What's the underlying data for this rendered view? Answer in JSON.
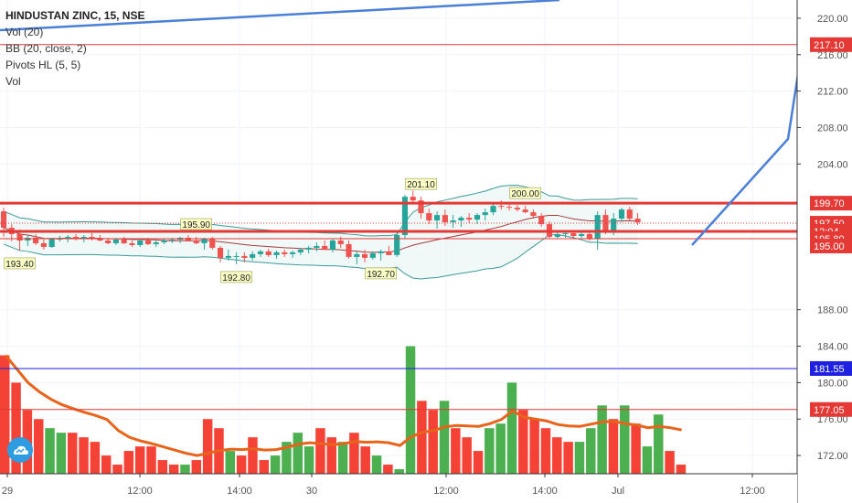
{
  "legend": {
    "title": "HINDUSTAN ZINC, 15, NSE",
    "lines": [
      "Vol (20)",
      "BB (20, close, 2)",
      "Pivots HL (5, 5)",
      "Vol"
    ]
  },
  "chart_data": {
    "type": "candlestick",
    "price_axis": {
      "ticks": [
        "220.00",
        "216.00",
        "212.00",
        "208.00",
        "204.00",
        "188.00",
        "184.00",
        "180.00",
        "176.00",
        "172.00"
      ],
      "range": [
        170.0,
        222.0
      ]
    },
    "time_axis": {
      "ticks": [
        "29",
        "12:00",
        "14:00",
        "30",
        "12:00",
        "14:00",
        "Jul",
        "12:00"
      ]
    },
    "price_badges": [
      {
        "label": "217.10",
        "value": 217.1,
        "color": "#e53935"
      },
      {
        "label": "199.70",
        "value": 199.7,
        "color": "#e53935"
      },
      {
        "label": "197.50",
        "value": 197.5,
        "color": "#e53935"
      },
      {
        "label": "12:04",
        "value": 196.6,
        "color": "#e53935"
      },
      {
        "label": "195.80",
        "value": 195.8,
        "color": "#e53935"
      },
      {
        "label": "195.00",
        "value": 195.0,
        "color": "#e53935"
      },
      {
        "label": "181.55",
        "value": 181.55,
        "color": "#1e22e0"
      },
      {
        "label": "177.05",
        "value": 177.05,
        "color": "#e53935"
      }
    ],
    "horizontal_lines": [
      {
        "value": 217.1,
        "color": "#e53935",
        "width": 1
      },
      {
        "value": 199.7,
        "color": "#e53935",
        "width": 3
      },
      {
        "value": 196.6,
        "color": "#e53935",
        "width": 3
      },
      {
        "value": 195.8,
        "color": "#e53935",
        "width": 1
      },
      {
        "value": 181.55,
        "color": "#1e22e0",
        "width": 1
      },
      {
        "value": 177.05,
        "color": "#e53935",
        "width": 1
      }
    ],
    "pivots": [
      {
        "label": "193.40",
        "bar": 2,
        "kind": "low"
      },
      {
        "label": "195.90",
        "bar": 24,
        "kind": "high"
      },
      {
        "label": "192.80",
        "bar": 29,
        "kind": "low"
      },
      {
        "label": "192.70",
        "bar": 47,
        "kind": "low"
      },
      {
        "label": "201.10",
        "bar": 52,
        "kind": "high"
      },
      {
        "label": "200.00",
        "bar": 65,
        "kind": "high"
      }
    ],
    "candles": [
      [
        198.8,
        199.2,
        196.0,
        197.0
      ],
      [
        197.0,
        197.4,
        195.5,
        196.3
      ],
      [
        196.3,
        196.8,
        194.5,
        195.6
      ],
      [
        195.6,
        196.2,
        195.0,
        195.9
      ],
      [
        195.9,
        196.3,
        195.1,
        195.3
      ],
      [
        195.3,
        195.7,
        194.6,
        194.9
      ],
      [
        194.9,
        195.9,
        194.8,
        195.8
      ],
      [
        195.8,
        196.1,
        195.5,
        195.8
      ],
      [
        195.8,
        196.2,
        195.4,
        196.0
      ],
      [
        196.0,
        196.3,
        195.6,
        195.8
      ],
      [
        195.8,
        196.2,
        195.4,
        196.0
      ],
      [
        196.0,
        196.4,
        195.6,
        195.8
      ],
      [
        195.8,
        196.2,
        195.5,
        195.6
      ],
      [
        195.6,
        195.9,
        195.2,
        195.3
      ],
      [
        195.3,
        195.9,
        195.1,
        195.7
      ],
      [
        195.7,
        196.0,
        195.2,
        195.3
      ],
      [
        195.3,
        195.6,
        194.9,
        195.1
      ],
      [
        195.1,
        195.7,
        194.9,
        195.6
      ],
      [
        195.6,
        195.9,
        195.1,
        195.2
      ],
      [
        195.2,
        195.6,
        194.9,
        195.4
      ],
      [
        195.4,
        195.8,
        195.2,
        195.6
      ],
      [
        195.6,
        195.9,
        195.3,
        195.7
      ],
      [
        195.7,
        196.0,
        195.3,
        195.9
      ],
      [
        195.9,
        196.2,
        195.5,
        195.6
      ],
      [
        195.6,
        196.0,
        195.2,
        195.3
      ],
      [
        195.3,
        195.9,
        194.6,
        195.8
      ],
      [
        195.8,
        196.0,
        194.6,
        194.8
      ],
      [
        194.8,
        195.0,
        193.2,
        193.7
      ],
      [
        193.7,
        194.6,
        193.4,
        193.9
      ],
      [
        193.9,
        194.3,
        193.0,
        193.9
      ],
      [
        193.9,
        194.3,
        193.2,
        193.7
      ],
      [
        193.7,
        194.4,
        193.4,
        194.1
      ],
      [
        194.1,
        194.6,
        193.8,
        194.4
      ],
      [
        194.4,
        194.7,
        193.8,
        194.0
      ],
      [
        194.0,
        194.5,
        193.6,
        194.3
      ],
      [
        194.3,
        194.6,
        193.8,
        194.1
      ],
      [
        194.1,
        194.5,
        193.7,
        194.3
      ],
      [
        194.3,
        194.8,
        194.0,
        194.6
      ],
      [
        194.6,
        195.0,
        194.2,
        194.8
      ],
      [
        194.8,
        195.4,
        194.4,
        195.0
      ],
      [
        195.0,
        195.6,
        194.6,
        194.6
      ],
      [
        194.6,
        195.8,
        194.3,
        195.6
      ],
      [
        195.6,
        196.0,
        194.8,
        195.2
      ],
      [
        195.2,
        195.6,
        193.6,
        193.8
      ],
      [
        193.8,
        194.4,
        193.0,
        194.1
      ],
      [
        194.1,
        194.6,
        193.2,
        193.7
      ],
      [
        193.7,
        194.4,
        193.5,
        194.2
      ],
      [
        194.2,
        194.6,
        193.4,
        194.4
      ],
      [
        194.4,
        195.0,
        194.0,
        194.0
      ],
      [
        194.0,
        196.5,
        193.8,
        196.2
      ],
      [
        196.2,
        200.6,
        195.8,
        200.4
      ],
      [
        200.4,
        201.1,
        199.6,
        200.0
      ],
      [
        200.0,
        200.4,
        198.0,
        198.6
      ],
      [
        198.6,
        199.1,
        197.4,
        197.8
      ],
      [
        197.8,
        198.8,
        196.9,
        198.4
      ],
      [
        198.4,
        199.0,
        197.2,
        197.6
      ],
      [
        197.6,
        198.4,
        197.0,
        197.8
      ],
      [
        197.8,
        198.3,
        197.1,
        198.1
      ],
      [
        198.1,
        198.6,
        197.5,
        197.9
      ],
      [
        197.9,
        198.6,
        197.4,
        198.4
      ],
      [
        198.4,
        199.1,
        197.8,
        198.7
      ],
      [
        198.7,
        199.6,
        198.4,
        199.4
      ],
      [
        199.4,
        200.0,
        199.0,
        199.3
      ],
      [
        199.3,
        199.6,
        198.9,
        199.2
      ],
      [
        199.2,
        199.5,
        198.8,
        199.0
      ],
      [
        199.0,
        199.4,
        198.6,
        198.7
      ],
      [
        198.7,
        199.0,
        198.0,
        198.3
      ],
      [
        198.3,
        198.6,
        197.1,
        197.4
      ],
      [
        197.4,
        197.7,
        195.8,
        196.0
      ],
      [
        196.0,
        196.7,
        195.8,
        196.3
      ],
      [
        196.3,
        196.7,
        195.9,
        196.4
      ],
      [
        196.4,
        196.6,
        195.9,
        196.1
      ],
      [
        196.1,
        196.5,
        195.9,
        196.3
      ],
      [
        196.3,
        196.6,
        195.6,
        195.8
      ],
      [
        195.8,
        198.8,
        194.6,
        198.4
      ],
      [
        198.4,
        199.0,
        196.3,
        196.6
      ],
      [
        196.6,
        198.6,
        196.2,
        198.0
      ],
      [
        198.0,
        199.2,
        197.6,
        199.0
      ],
      [
        199.0,
        199.3,
        197.8,
        198.0
      ],
      [
        198.0,
        198.6,
        197.3,
        197.6
      ]
    ],
    "volume_bars": [
      [
        183.0,
        "red"
      ],
      [
        180.0,
        "red"
      ],
      [
        177.0,
        "red"
      ],
      [
        176.0,
        "red"
      ],
      [
        175.0,
        "green"
      ],
      [
        174.5,
        "green"
      ],
      [
        174.5,
        "red"
      ],
      [
        174.0,
        "red"
      ],
      [
        173.5,
        "red"
      ],
      [
        172.0,
        "red"
      ],
      [
        171.0,
        "red"
      ],
      [
        172.5,
        "red"
      ],
      [
        173.0,
        "red"
      ],
      [
        173.0,
        "red"
      ],
      [
        171.5,
        "red"
      ],
      [
        171.0,
        "red"
      ],
      [
        171.0,
        "green"
      ],
      [
        171.5,
        "red"
      ],
      [
        176.0,
        "red"
      ],
      [
        175.0,
        "red"
      ],
      [
        172.5,
        "green"
      ],
      [
        172.0,
        "red"
      ],
      [
        174.0,
        "red"
      ],
      [
        171.5,
        "red"
      ],
      [
        172.0,
        "green"
      ],
      [
        173.5,
        "green"
      ],
      [
        174.5,
        "green"
      ],
      [
        173.0,
        "green"
      ],
      [
        175.0,
        "red"
      ],
      [
        174.0,
        "red"
      ],
      [
        173.5,
        "green"
      ],
      [
        174.5,
        "red"
      ],
      [
        173.0,
        "red"
      ],
      [
        172.0,
        "green"
      ],
      [
        171.0,
        "red"
      ],
      [
        170.5,
        "green"
      ],
      [
        184.0,
        "green"
      ],
      [
        178.0,
        "red"
      ],
      [
        177.0,
        "red"
      ],
      [
        178.0,
        "green"
      ],
      [
        175.0,
        "red"
      ],
      [
        174.0,
        "red"
      ],
      [
        172.5,
        "red"
      ],
      [
        175.0,
        "green"
      ],
      [
        175.5,
        "green"
      ],
      [
        180.0,
        "green"
      ],
      [
        177.0,
        "red"
      ],
      [
        176.0,
        "red"
      ],
      [
        175.0,
        "red"
      ],
      [
        174.0,
        "red"
      ],
      [
        173.5,
        "red"
      ],
      [
        173.5,
        "green"
      ],
      [
        175.0,
        "green"
      ],
      [
        177.5,
        "green"
      ],
      [
        176.0,
        "red"
      ],
      [
        177.5,
        "green"
      ],
      [
        175.5,
        "red"
      ],
      [
        173.0,
        "green"
      ],
      [
        176.5,
        "green"
      ],
      [
        172.5,
        "red"
      ],
      [
        171.0,
        "red"
      ]
    ]
  }
}
